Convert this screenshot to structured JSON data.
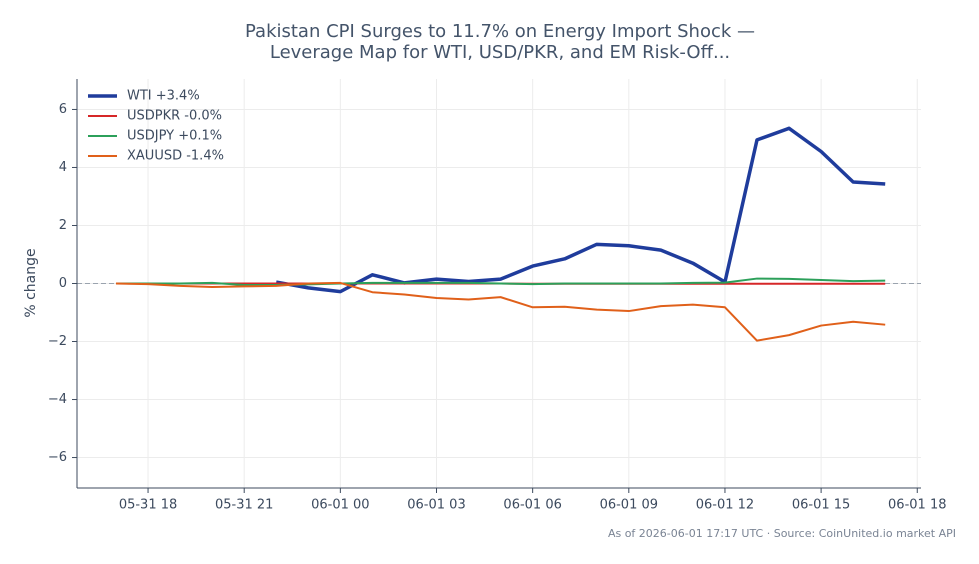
{
  "chart_data": {
    "type": "line",
    "title": [
      "Pakistan CPI Surges to 11.7% on Energy Import Shock —",
      "Leverage Map for WTI, USD/PKR, and EM Risk-Off..."
    ],
    "y_label": "% change",
    "footer": "As of 2026-06-01 17:17 UTC · Source: CoinUnited.io market API",
    "x": [
      "05-31 17",
      "05-31 18",
      "05-31 19",
      "05-31 20",
      "05-31 21",
      "05-31 22",
      "05-31 23",
      "06-01 00",
      "06-01 01",
      "06-01 02",
      "06-01 03",
      "06-01 04",
      "06-01 05",
      "06-01 06",
      "06-01 07",
      "06-01 08",
      "06-01 09",
      "06-01 10",
      "06-01 11",
      "06-01 12",
      "06-01 13",
      "06-01 14",
      "06-01 15",
      "06-01 16",
      "06-01 17"
    ],
    "xlim": [
      "05-31 15:47",
      "06-01 18:07"
    ],
    "xticks": [
      "05-31 18",
      "05-31 21",
      "06-01 00",
      "06-01 03",
      "06-01 06",
      "06-01 09",
      "06-01 12",
      "06-01 15",
      "06-01 18"
    ],
    "ylim": [
      -7.05,
      7.05
    ],
    "yticks": [
      {
        "value": -6,
        "label": "−6"
      },
      {
        "value": -4,
        "label": "−4"
      },
      {
        "value": -2,
        "label": "−2"
      },
      0,
      2,
      4,
      6
    ],
    "reference_line": 0,
    "grid": true,
    "legend": "upper left",
    "series": [
      {
        "name": "WTI +3.4%",
        "color": "#1f3c9c",
        "width": 3.5,
        "values": [
          null,
          null,
          null,
          null,
          null,
          0.05,
          -0.15,
          -0.28,
          0.3,
          0.02,
          0.15,
          0.07,
          0.15,
          0.6,
          0.85,
          1.35,
          1.3,
          1.15,
          0.7,
          0.05,
          4.95,
          5.35,
          4.55,
          3.5,
          3.43
        ]
      },
      {
        "name": "USDPKR -0.0%",
        "color": "#d62728",
        "width": 2,
        "values": [
          0,
          0,
          0,
          0,
          0,
          0,
          0,
          0,
          0,
          0,
          0,
          0,
          0,
          -0.01,
          -0.01,
          -0.01,
          -0.01,
          -0.01,
          -0.01,
          -0.01,
          -0.01,
          -0.01,
          -0.01,
          -0.01,
          -0.01
        ]
      },
      {
        "name": "USDJPY +0.1%",
        "color": "#2ca05a",
        "width": 2,
        "values": [
          0,
          0,
          0,
          0.02,
          -0.05,
          -0.05,
          -0.03,
          0,
          0.02,
          0.02,
          0.02,
          0.02,
          0,
          -0.02,
          0,
          0,
          0,
          0,
          0.02,
          0.03,
          0.17,
          0.16,
          0.12,
          0.08,
          0.1
        ]
      },
      {
        "name": "XAUUSD -1.4%",
        "color": "#e0601a",
        "width": 2,
        "values": [
          0,
          -0.02,
          -0.08,
          -0.12,
          -0.1,
          -0.08,
          0,
          0.02,
          -0.3,
          -0.38,
          -0.5,
          -0.55,
          -0.47,
          -0.82,
          -0.8,
          -0.9,
          -0.95,
          -0.78,
          -0.73,
          -0.82,
          -1.97,
          -1.78,
          -1.45,
          -1.32,
          -1.42
        ]
      }
    ]
  }
}
